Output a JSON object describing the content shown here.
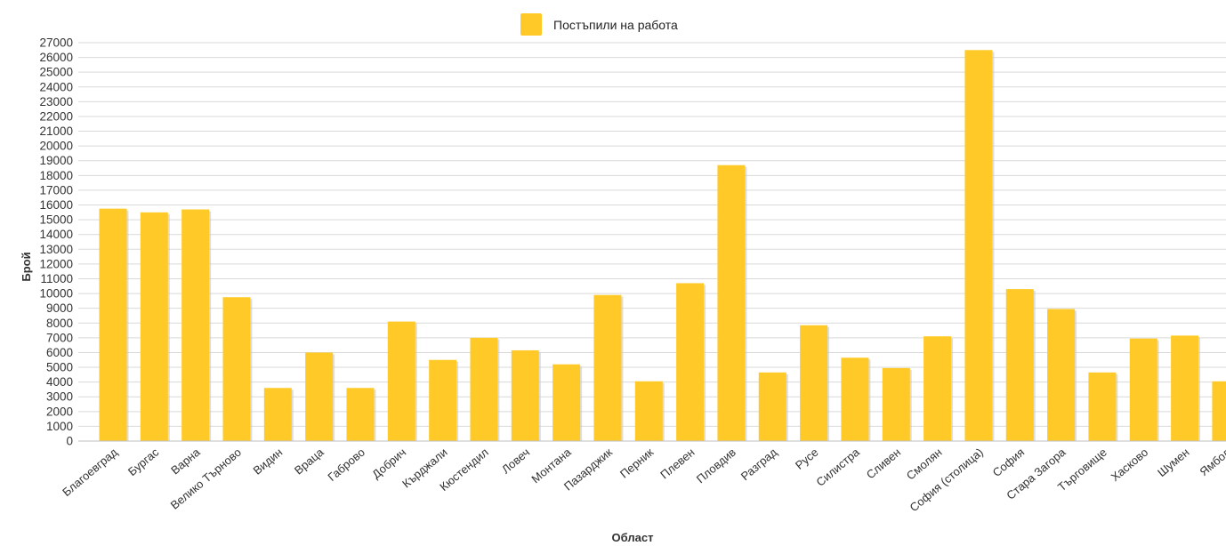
{
  "chart_data": {
    "type": "bar",
    "title": "",
    "xlabel": "Област",
    "ylabel": "Брой",
    "ylim": [
      0,
      27000
    ],
    "ytick_step": 1000,
    "grid": true,
    "legend_position": "top-center",
    "bar_color": "#FFCA28",
    "categories": [
      "Благоевград",
      "Бургас",
      "Варна",
      "Велико Търново",
      "Видин",
      "Враца",
      "Габрово",
      "Добрич",
      "Кърджали",
      "Кюстендил",
      "Ловеч",
      "Монтана",
      "Пазарджик",
      "Перник",
      "Плевен",
      "Пловдив",
      "Разград",
      "Русе",
      "Силистра",
      "Сливен",
      "Смолян",
      "София (столица)",
      "София",
      "Стара Загора",
      "Търговище",
      "Хасково",
      "Шумен",
      "Ямбол"
    ],
    "series": [
      {
        "name": "Постъпили на работа",
        "values": [
          15750,
          15500,
          15700,
          9750,
          3600,
          6000,
          3600,
          8100,
          5500,
          7000,
          6150,
          5200,
          9900,
          4050,
          10700,
          18700,
          4650,
          7850,
          5650,
          4950,
          7100,
          26500,
          10300,
          8950,
          4650,
          6950,
          7150,
          4050
        ]
      }
    ]
  }
}
